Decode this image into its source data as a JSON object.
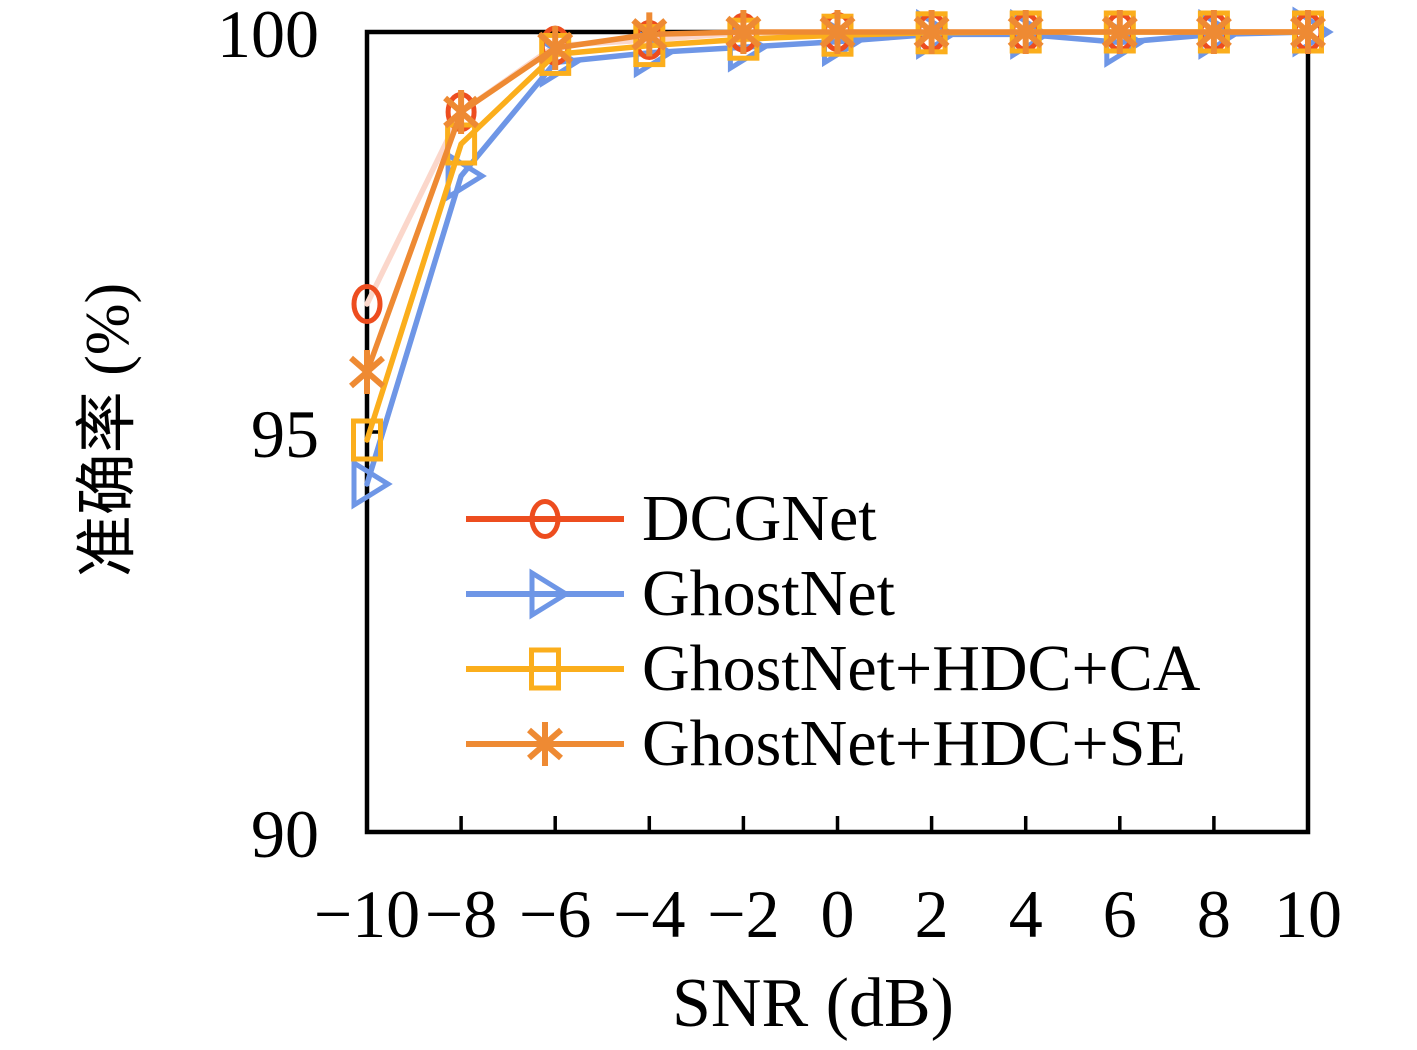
{
  "figure": {
    "xlabel": "SNR (dB)",
    "ylabel": "准确率 (%)"
  },
  "chart_data": {
    "type": "line",
    "title": "",
    "xlabel": "SNR (dB)",
    "ylabel": "准确率 (%)",
    "xlim": [
      -10,
      10
    ],
    "ylim": [
      90,
      100
    ],
    "grid": false,
    "legend_position": "inside-left-center",
    "background": "#ffffff",
    "axis_color": "#000000",
    "x": [
      -10,
      -8,
      -6,
      -4,
      -2,
      0,
      2,
      4,
      6,
      8,
      10
    ],
    "x_tick_labels": [
      "−10",
      "−8",
      "−6",
      "−4",
      "−2",
      "0",
      "2",
      "4",
      "6",
      "8",
      "10"
    ],
    "y_tick_values": [
      90,
      95,
      100
    ],
    "y_tick_labels": [
      "90",
      "95",
      "100"
    ],
    "series": [
      {
        "name": "DCGNet",
        "marker": "circle",
        "color": "#ED4D1F",
        "line_color": "#FBD7CB",
        "values": [
          96.6,
          99.0,
          99.83,
          99.9,
          99.99,
          100,
          100,
          100,
          100,
          100,
          100
        ]
      },
      {
        "name": "GhostNet",
        "marker": "triangle-right",
        "color": "#6E96E6",
        "line_color": "#6E96E6",
        "values": [
          94.35,
          98.2,
          99.62,
          99.74,
          99.81,
          99.88,
          99.97,
          99.97,
          99.87,
          99.97,
          100
        ]
      },
      {
        "name": "GhostNet+HDC+CA",
        "marker": "square",
        "color": "#FBAE1C",
        "line_color": "#FBAE1C",
        "values": [
          94.9,
          98.6,
          99.72,
          99.83,
          99.91,
          99.96,
          99.99,
          100,
          100,
          100,
          100
        ]
      },
      {
        "name": "GhostNet+HDC+SE",
        "marker": "asterisk",
        "color": "#EE8A33",
        "line_color": "#EE8A33",
        "values": [
          95.75,
          99.0,
          99.8,
          99.97,
          100,
          100,
          100,
          100,
          100,
          100,
          100
        ]
      }
    ]
  }
}
